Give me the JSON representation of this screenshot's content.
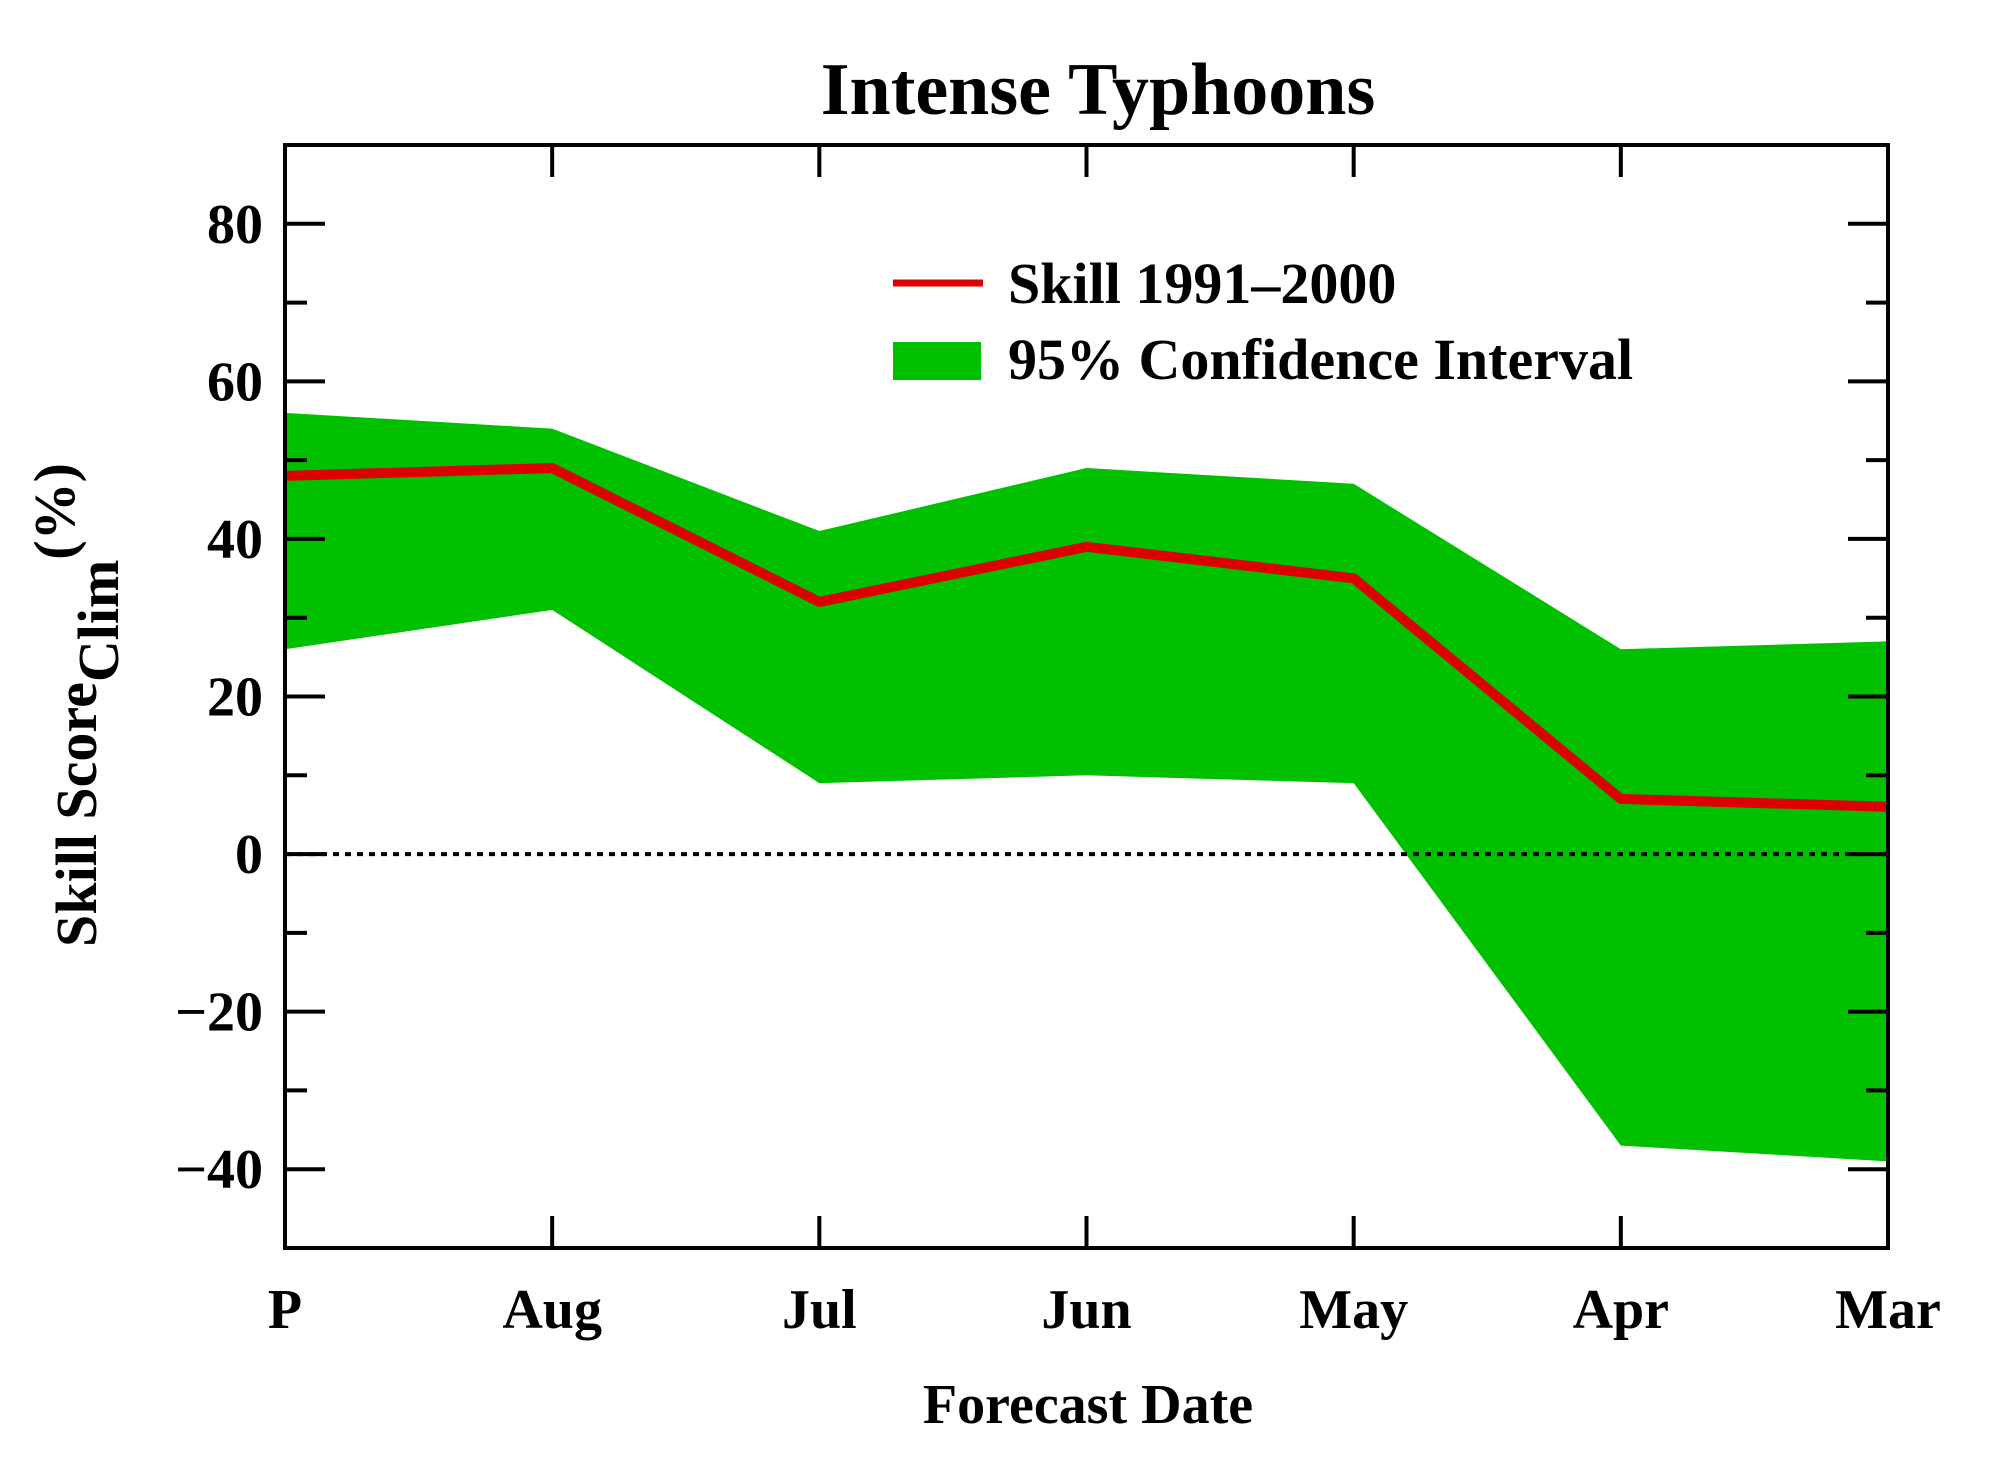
{
  "chart_data": {
    "type": "area",
    "title": "Intense Typhoons",
    "xlabel": "Forecast Date",
    "ylabel": {
      "main": "Skill Score",
      "subscript": "Clim",
      "unit": "(%)"
    },
    "categories": [
      "P",
      "Aug",
      "Jul",
      "Jun",
      "May",
      "Apr",
      "Mar"
    ],
    "ylim": [
      -50,
      90
    ],
    "yticks": [
      -40,
      -20,
      0,
      20,
      40,
      60,
      80
    ],
    "ytick_labels": [
      "−40",
      "−20",
      "0",
      "20",
      "40",
      "60",
      "80"
    ],
    "zero_line": true,
    "grid": false,
    "legend_position": "top-right",
    "series": [
      {
        "name": "Skill 1991–2000",
        "kind": "line",
        "color": "#dd0000",
        "values": [
          48,
          49,
          32,
          39,
          35,
          7,
          6
        ]
      },
      {
        "name": "95% Confidence Interval",
        "kind": "band",
        "color": "#00c000",
        "upper": [
          56,
          54,
          41,
          49,
          47,
          26,
          27
        ],
        "lower": [
          26,
          31,
          9,
          10,
          9,
          -37,
          -39
        ]
      }
    ]
  }
}
